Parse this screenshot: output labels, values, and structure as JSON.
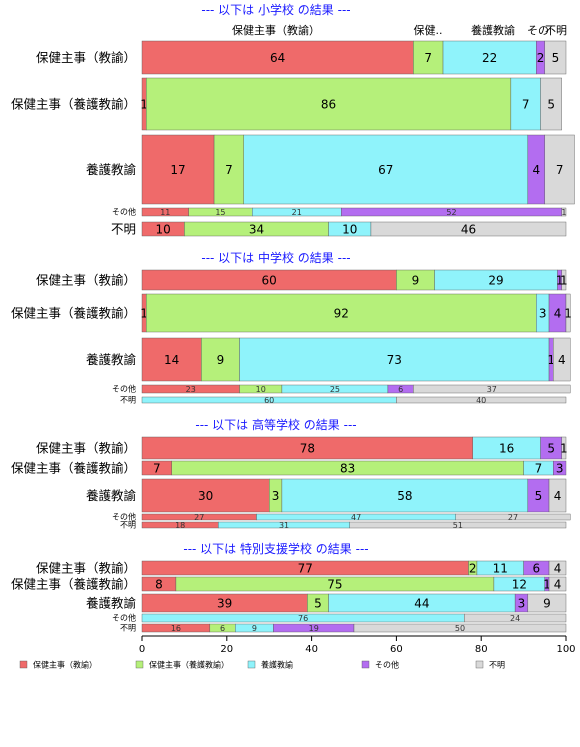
{
  "colors": {
    "保健主事（教諭）": "#ef6a6a",
    "保健主事（養護教諭）": "#b5f07a",
    "養護教諭": "#8ff3fb",
    "その他": "#b36df0",
    "不明": "#d9d9d9"
  },
  "legend": [
    "保健主事（教諭）",
    "保健主事（養護教諭）",
    "養護教諭",
    "その他",
    "不明"
  ],
  "top_labels": [
    "保健主事（教諭）",
    "保健..",
    "養護教諭",
    "その",
    "不明"
  ],
  "chart_data": {
    "type": "bar",
    "orientation": "horizontal",
    "stacked": true,
    "xlim": [
      0,
      100
    ],
    "xticks": [
      0,
      20,
      40,
      60,
      80,
      100
    ],
    "categories": [
      "保健主事（教諭）",
      "保健主事（養護教諭）",
      "養護教諭",
      "その他",
      "不明"
    ],
    "sections": [
      {
        "title": "--- 以下は 小学校 の結果 ---",
        "rows": [
          {
            "label": "保健主事（教諭）",
            "values": [
              64,
              7,
              22,
              2,
              5
            ]
          },
          {
            "label": "保健主事（養護教諭）",
            "values": [
              1,
              86,
              7,
              0,
              5
            ]
          },
          {
            "label": "養護教諭",
            "values": [
              17,
              7,
              67,
              4,
              7
            ]
          },
          {
            "label": "その他",
            "values": [
              11,
              15,
              21,
              52,
              1
            ]
          },
          {
            "label": "不明",
            "values": [
              10,
              34,
              10,
              0,
              46
            ]
          }
        ]
      },
      {
        "title": "--- 以下は 中学校 の結果 ---",
        "rows": [
          {
            "label": "保健主事（教諭）",
            "values": [
              60,
              9,
              29,
              1,
              1
            ]
          },
          {
            "label": "保健主事（養護教諭）",
            "values": [
              1,
              92,
              3,
              4,
              1
            ]
          },
          {
            "label": "養護教諭",
            "values": [
              14,
              9,
              73,
              1,
              4
            ]
          },
          {
            "label": "その他",
            "values": [
              23,
              10,
              25,
              6,
              37
            ]
          },
          {
            "label": "不明",
            "values": [
              0,
              0,
              60,
              0,
              40
            ]
          }
        ]
      },
      {
        "title": "--- 以下は 高等学校 の結果 ---",
        "rows": [
          {
            "label": "保健主事（教諭）",
            "values": [
              78,
              0,
              16,
              5,
              1
            ]
          },
          {
            "label": "保健主事（養護教諭）",
            "values": [
              7,
              83,
              7,
              3,
              0
            ]
          },
          {
            "label": "養護教諭",
            "values": [
              30,
              3,
              58,
              5,
              4
            ]
          },
          {
            "label": "その他",
            "values": [
              27,
              0,
              47,
              0,
              27
            ]
          },
          {
            "label": "不明",
            "values": [
              18,
              0,
              31,
              0,
              51
            ]
          }
        ]
      },
      {
        "title": "--- 以下は 特別支援学校 の結果 ---",
        "rows": [
          {
            "label": "保健主事（教諭）",
            "values": [
              77,
              2,
              11,
              6,
              4
            ]
          },
          {
            "label": "保健主事（養護教諭）",
            "values": [
              8,
              75,
              12,
              1,
              4
            ]
          },
          {
            "label": "養護教諭",
            "values": [
              39,
              5,
              44,
              3,
              9
            ]
          },
          {
            "label": "その他",
            "values": [
              0,
              0,
              76,
              0,
              24
            ]
          },
          {
            "label": "不明",
            "values": [
              16,
              6,
              9,
              19,
              50
            ]
          }
        ]
      }
    ]
  }
}
